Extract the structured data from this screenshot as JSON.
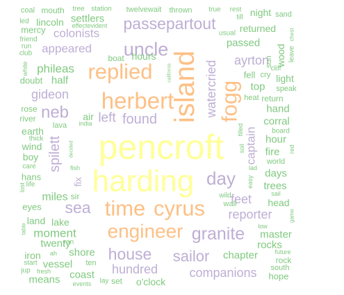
{
  "colors": {
    "yellow": "#FFFF99",
    "orange": "#FDC086",
    "purple": "#BEAED4",
    "green": "#7FC97F"
  },
  "words": [
    {
      "text": "pencroft",
      "color": "yellow"
    },
    {
      "text": "harding",
      "color": "yellow"
    },
    {
      "text": "island",
      "color": "orange"
    },
    {
      "text": "herbert",
      "color": "orange"
    },
    {
      "text": "replied",
      "color": "orange"
    },
    {
      "text": "engineer",
      "color": "orange"
    },
    {
      "text": "cyrus",
      "color": "orange"
    },
    {
      "text": "time",
      "color": "orange"
    },
    {
      "text": "fogg",
      "color": "orange"
    },
    {
      "text": "passepartout",
      "color": "purple"
    },
    {
      "text": "uncle",
      "color": "purple"
    },
    {
      "text": "watercried",
      "color": "purple"
    },
    {
      "text": "granite",
      "color": "purple"
    },
    {
      "text": "neb",
      "color": "purple"
    },
    {
      "text": "spilett",
      "color": "purple"
    },
    {
      "text": "day",
      "color": "purple"
    },
    {
      "text": "sea",
      "color": "purple"
    },
    {
      "text": "house",
      "color": "purple"
    },
    {
      "text": "sailor",
      "color": "purple"
    },
    {
      "text": "found",
      "color": "purple"
    },
    {
      "text": "captain",
      "color": "purple"
    },
    {
      "text": "ayrton",
      "color": "purple"
    },
    {
      "text": "reporter",
      "color": "purple"
    },
    {
      "text": "companions",
      "color": "purple"
    },
    {
      "text": "hundred",
      "color": "purple"
    },
    {
      "text": "gideon",
      "color": "purple"
    },
    {
      "text": "appeared",
      "color": "purple"
    },
    {
      "text": "colonists",
      "color": "purple"
    },
    {
      "text": "feet",
      "color": "purple"
    },
    {
      "text": "left",
      "color": "purple"
    },
    {
      "text": "phileas",
      "color": "green"
    },
    {
      "text": "settlers",
      "color": "green"
    },
    {
      "text": "lincoln",
      "color": "green"
    },
    {
      "text": "hours",
      "color": "green"
    },
    {
      "text": "returned",
      "color": "green"
    },
    {
      "text": "passed",
      "color": "green"
    },
    {
      "text": "night",
      "color": "green"
    },
    {
      "text": "half",
      "color": "green"
    },
    {
      "text": "miles",
      "color": "green"
    },
    {
      "text": "moment",
      "color": "green"
    },
    {
      "text": "twenty",
      "color": "green"
    },
    {
      "text": "vessel",
      "color": "green"
    },
    {
      "text": "shore",
      "color": "green"
    },
    {
      "text": "coast",
      "color": "green"
    },
    {
      "text": "means",
      "color": "green"
    },
    {
      "text": "chapter",
      "color": "green"
    },
    {
      "text": "rocks",
      "color": "green"
    },
    {
      "text": "master",
      "color": "green"
    },
    {
      "text": "hand",
      "color": "green"
    },
    {
      "text": "corral",
      "color": "green"
    },
    {
      "text": "hour",
      "color": "green"
    },
    {
      "text": "fire",
      "color": "green"
    },
    {
      "text": "days",
      "color": "green"
    },
    {
      "text": "trees",
      "color": "green"
    },
    {
      "text": "head",
      "color": "green"
    },
    {
      "text": "top",
      "color": "green"
    },
    {
      "text": "light",
      "color": "green"
    },
    {
      "text": "wood",
      "color": "green"
    },
    {
      "text": "sun",
      "color": "green"
    },
    {
      "text": "fix",
      "color": "purple"
    },
    {
      "text": "air",
      "color": "green"
    },
    {
      "text": "lava",
      "color": "green"
    },
    {
      "text": "earth",
      "color": "green"
    },
    {
      "text": "wind",
      "color": "green"
    },
    {
      "text": "boy",
      "color": "green"
    },
    {
      "text": "hans",
      "color": "green"
    },
    {
      "text": "eyes",
      "color": "green"
    },
    {
      "text": "land",
      "color": "green"
    },
    {
      "text": "lake",
      "color": "green"
    },
    {
      "text": "iron",
      "color": "green"
    },
    {
      "text": "rock",
      "color": "green"
    },
    {
      "text": "hope",
      "color": "green"
    },
    {
      "text": "south",
      "color": "green"
    },
    {
      "text": "set",
      "color": "green"
    },
    {
      "text": "o'clock",
      "color": "green"
    },
    {
      "text": "lay",
      "color": "green"
    },
    {
      "text": "ten",
      "color": "green"
    },
    {
      "text": "sir",
      "color": "green"
    },
    {
      "text": "wall",
      "color": "green"
    },
    {
      "text": "world",
      "color": "green"
    },
    {
      "text": "board",
      "color": "green"
    },
    {
      "text": "doubt",
      "color": "green"
    },
    {
      "text": "rose",
      "color": "green"
    },
    {
      "text": "river",
      "color": "green"
    },
    {
      "text": "mouth",
      "color": "green"
    },
    {
      "text": "coal",
      "color": "green"
    },
    {
      "text": "tree",
      "color": "green"
    },
    {
      "text": "station",
      "color": "green"
    },
    {
      "text": "twelvewait",
      "color": "green"
    },
    {
      "text": "thrown",
      "color": "green"
    },
    {
      "text": "true",
      "color": "green"
    },
    {
      "text": "rest",
      "color": "green"
    },
    {
      "text": "till",
      "color": "green"
    },
    {
      "text": "sand",
      "color": "green"
    },
    {
      "text": "led",
      "color": "green"
    },
    {
      "text": "mercy",
      "color": "green"
    },
    {
      "text": "effectevident",
      "color": "green"
    },
    {
      "text": "usual",
      "color": "green"
    },
    {
      "text": "friend",
      "color": "green"
    },
    {
      "text": "run",
      "color": "green"
    },
    {
      "text": "club",
      "color": "green"
    },
    {
      "text": "white",
      "color": "green"
    },
    {
      "text": "boat",
      "color": "green"
    },
    {
      "text": "californis",
      "color": "green"
    },
    {
      "text": "fell",
      "color": "green"
    },
    {
      "text": "cry",
      "color": "green"
    },
    {
      "text": "cliff",
      "color": "green"
    },
    {
      "text": "speak",
      "color": "green"
    },
    {
      "text": "heat",
      "color": "green"
    },
    {
      "text": "return",
      "color": "green"
    },
    {
      "text": "leave",
      "color": "green"
    },
    {
      "text": "chest",
      "color": "green"
    },
    {
      "text": "thick",
      "color": "green"
    },
    {
      "text": "care",
      "color": "green"
    },
    {
      "text": "decided",
      "color": "green"
    },
    {
      "text": "india",
      "color": "green"
    },
    {
      "text": "fish",
      "color": "green"
    },
    {
      "text": "soil",
      "color": "green"
    },
    {
      "text": "filled",
      "color": "green"
    },
    {
      "text": "lad",
      "color": "green"
    },
    {
      "text": "easy",
      "color": "green"
    },
    {
      "text": "wild",
      "color": "green"
    },
    {
      "text": "sail",
      "color": "green"
    },
    {
      "text": "red",
      "color": "green"
    },
    {
      "text": "lost",
      "color": "green"
    },
    {
      "text": "life",
      "color": "green"
    },
    {
      "text": "table",
      "color": "green"
    },
    {
      "text": "ran",
      "color": "green"
    },
    {
      "text": "ah",
      "color": "green"
    },
    {
      "text": "start",
      "color": "green"
    },
    {
      "text": "jup",
      "color": "green"
    },
    {
      "text": "fresh",
      "color": "green"
    },
    {
      "text": "events",
      "color": "green"
    },
    {
      "text": "low",
      "color": "green"
    },
    {
      "text": "game",
      "color": "green"
    },
    {
      "text": "future",
      "color": "green"
    }
  ]
}
